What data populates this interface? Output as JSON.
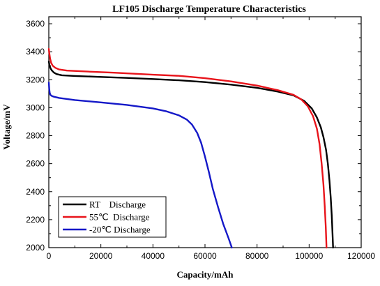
{
  "chart_data": {
    "type": "line",
    "title": "LF105 Discharge Temperature Characteristics",
    "xlabel": "Capacity/mAh",
    "ylabel": "Voltage/mV",
    "xlim": [
      0,
      120000
    ],
    "ylim": [
      2000,
      3650
    ],
    "x_ticks": [
      0,
      20000,
      40000,
      60000,
      80000,
      100000,
      120000
    ],
    "y_ticks": [
      2000,
      2200,
      2400,
      2600,
      2800,
      3000,
      3200,
      3400,
      3600
    ],
    "grid": false,
    "legend_position": "bottom-left",
    "series": [
      {
        "name": "RT    Discharge",
        "color": "#000000",
        "x": [
          0,
          300,
          700,
          1200,
          2000,
          3000,
          5000,
          10000,
          20000,
          30000,
          40000,
          50000,
          60000,
          70000,
          80000,
          88000,
          94000,
          98000,
          101000,
          103000,
          104500,
          105500,
          106500,
          107200,
          107800,
          108300,
          108700,
          109000,
          109200
        ],
        "y": [
          3330,
          3300,
          3280,
          3265,
          3250,
          3240,
          3232,
          3227,
          3220,
          3213,
          3205,
          3196,
          3183,
          3165,
          3142,
          3115,
          3088,
          3050,
          2995,
          2930,
          2860,
          2790,
          2700,
          2600,
          2480,
          2360,
          2230,
          2100,
          2000
        ]
      },
      {
        "name": "55℃  Discharge",
        "color": "#e8141b",
        "x": [
          0,
          200,
          500,
          900,
          1500,
          2500,
          4000,
          7000,
          15000,
          25000,
          40000,
          50000,
          60000,
          70000,
          80000,
          88000,
          94000,
          97000,
          99500,
          101500,
          103000,
          104000,
          104800,
          105500,
          106000,
          106400,
          106700
        ],
        "y": [
          3420,
          3390,
          3350,
          3320,
          3300,
          3285,
          3273,
          3265,
          3258,
          3250,
          3236,
          3228,
          3211,
          3188,
          3158,
          3125,
          3092,
          3060,
          3010,
          2940,
          2850,
          2740,
          2600,
          2450,
          2300,
          2150,
          2000
        ]
      },
      {
        "name": "-20℃ Discharge",
        "color": "#1418c8",
        "x": [
          0,
          200,
          400,
          700,
          1200,
          2000,
          4000,
          10000,
          20000,
          30000,
          40000,
          45000,
          50000,
          53000,
          55000,
          57000,
          58500,
          60000,
          61500,
          63000,
          65000,
          67000,
          69000,
          70300
        ],
        "y": [
          3180,
          3130,
          3100,
          3090,
          3083,
          3078,
          3070,
          3055,
          3038,
          3020,
          2995,
          2975,
          2945,
          2915,
          2880,
          2820,
          2750,
          2650,
          2540,
          2420,
          2290,
          2170,
          2070,
          2000
        ]
      }
    ]
  }
}
